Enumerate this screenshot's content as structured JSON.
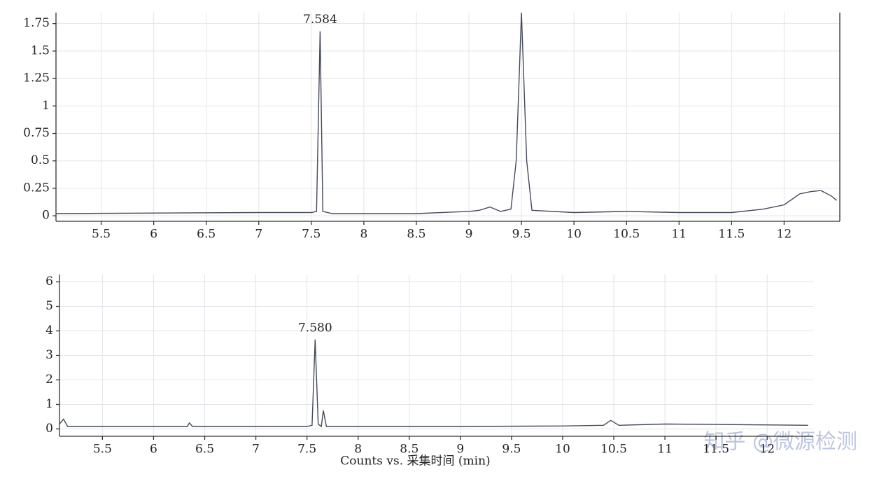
{
  "chart_data": [
    {
      "type": "line",
      "grid": true,
      "xlim": [
        5.07,
        12.53
      ],
      "ylim": [
        -0.05,
        1.85
      ],
      "xticks": [
        5.5,
        6,
        6.5,
        7,
        7.5,
        8,
        8.5,
        9,
        9.5,
        10,
        10.5,
        11,
        11.5,
        12
      ],
      "yticks": [
        0,
        0.25,
        0.5,
        0.75,
        1,
        1.25,
        1.5,
        1.75
      ],
      "series": [
        {
          "color": "#444a5a",
          "x": [
            5.07,
            7.0,
            7.5,
            7.55,
            7.584,
            7.61,
            7.7,
            8.5,
            9.0,
            9.1,
            9.2,
            9.3,
            9.4,
            9.45,
            9.5,
            9.55,
            9.6,
            10.0,
            10.5,
            11.0,
            11.5,
            11.8,
            12.0,
            12.15,
            12.25,
            12.35,
            12.45,
            12.5
          ],
          "values": [
            0.02,
            0.03,
            0.03,
            0.04,
            1.68,
            0.04,
            0.02,
            0.02,
            0.04,
            0.05,
            0.08,
            0.04,
            0.06,
            0.5,
            1.85,
            0.5,
            0.05,
            0.03,
            0.04,
            0.03,
            0.03,
            0.06,
            0.1,
            0.2,
            0.22,
            0.23,
            0.18,
            0.14
          ]
        }
      ],
      "annotations": [
        {
          "text": "7.584",
          "x": 7.584,
          "y": 1.68
        }
      ]
    },
    {
      "type": "line",
      "grid": true,
      "xlim": [
        5.08,
        12.45
      ],
      "ylim": [
        -0.3,
        6.3
      ],
      "xticks": [
        5.5,
        6,
        6.5,
        7,
        7.5,
        8,
        8.5,
        9,
        9.5,
        10,
        10.5,
        11,
        11.5,
        12
      ],
      "yticks": [
        0,
        1,
        2,
        3,
        4,
        5,
        6
      ],
      "xlabel": "Counts vs. 采集时间 (min)",
      "series": [
        {
          "color": "#444a5a",
          "x": [
            5.08,
            5.12,
            5.16,
            6.0,
            6.33,
            6.35,
            6.38,
            7.5,
            7.55,
            7.58,
            7.61,
            7.64,
            7.66,
            7.69,
            9.0,
            10.0,
            10.4,
            10.47,
            10.55,
            11.0,
            12.4
          ],
          "values": [
            0.2,
            0.4,
            0.1,
            0.1,
            0.1,
            0.25,
            0.1,
            0.1,
            0.15,
            3.65,
            0.2,
            0.1,
            0.75,
            0.1,
            0.1,
            0.12,
            0.15,
            0.35,
            0.15,
            0.2,
            0.15
          ]
        }
      ],
      "annotations": [
        {
          "text": "7.580",
          "x": 7.58,
          "y": 3.65
        }
      ]
    }
  ],
  "watermark": "知乎 @微源检测"
}
